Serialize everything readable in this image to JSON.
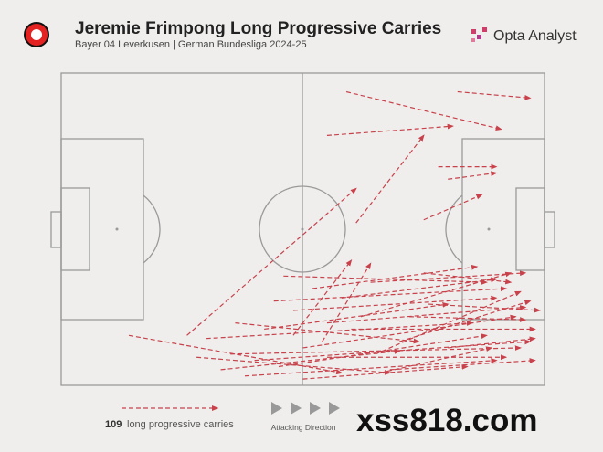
{
  "chart_data": {
    "type": "carry-map",
    "title": "Jeremie Frimpong Long Progressive Carries",
    "subtitle": "Bayer 04 Leverkusen | German Bundesliga 2024-25",
    "brand": "Opta Analyst",
    "count": 109,
    "count_label": "long progressive carries",
    "direction_label": "Attacking Direction",
    "watermark": "xss818.com",
    "color": "#c8414b",
    "xlim": [
      0,
      100
    ],
    "ylim": [
      0,
      100
    ],
    "x_start": [
      59,
      82,
      55,
      78,
      80,
      75,
      61,
      26,
      46,
      54,
      14,
      33,
      75,
      44,
      48,
      30,
      35,
      40,
      50,
      55,
      60,
      38,
      45,
      65,
      70,
      58,
      62,
      52,
      68,
      42,
      28,
      50,
      72,
      55,
      36,
      64,
      76,
      48,
      66,
      80
    ],
    "y_start": [
      94,
      94,
      80,
      70,
      66,
      53,
      52,
      16,
      35,
      14,
      16,
      5,
      36,
      27,
      24,
      15,
      10,
      8,
      12,
      20,
      18,
      3,
      6,
      10,
      14,
      28,
      22,
      31,
      5,
      18,
      9,
      2,
      22,
      9,
      20,
      33,
      26,
      16,
      4,
      12
    ],
    "x_end": [
      91,
      97,
      81,
      90,
      90,
      87,
      75,
      61,
      88,
      64,
      58,
      70,
      93,
      92,
      90,
      85,
      95,
      97,
      94,
      96,
      98,
      90,
      88,
      95,
      97,
      90,
      93,
      86,
      98,
      80,
      68,
      84,
      96,
      92,
      74,
      96,
      99,
      60,
      89,
      98
    ],
    "y_end": [
      82,
      92,
      83,
      70,
      68,
      61,
      80,
      63,
      33,
      39,
      4,
      11,
      33,
      31,
      28,
      20,
      12,
      14,
      22,
      25,
      18,
      8,
      16,
      30,
      27,
      34,
      36,
      38,
      8,
      26,
      4,
      6,
      21,
      9,
      14,
      36,
      24,
      40,
      12,
      15
    ]
  }
}
